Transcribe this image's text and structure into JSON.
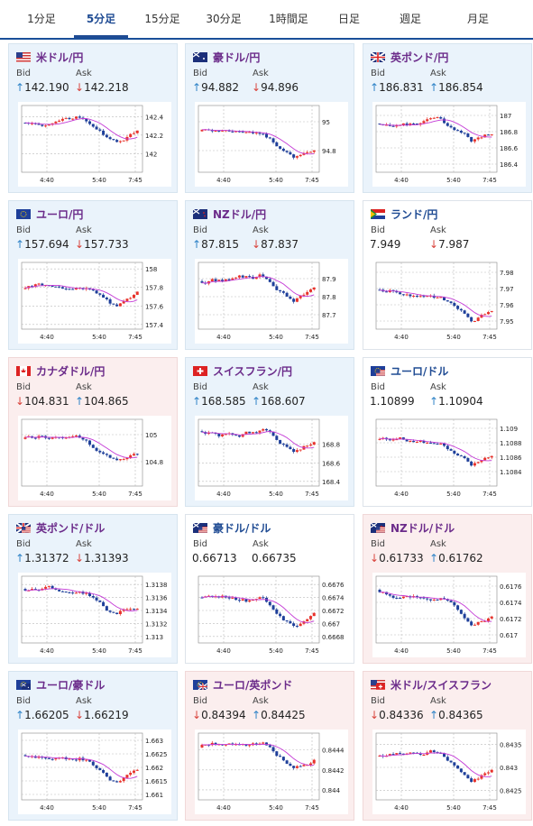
{
  "tabs": [
    "1分足",
    "5分足",
    "15分足",
    "30分足",
    "1時間足",
    "日足",
    "週足",
    "月足"
  ],
  "active_tab": 1,
  "labels": {
    "bid": "Bid",
    "ask": "Ask"
  },
  "cards": [
    {
      "pair": "米ドル/円",
      "flag": "us",
      "bid": "142.190",
      "bid_dir": "up",
      "ask": "142.218",
      "ask_dir": "down",
      "style": "blue",
      "chart_data": {
        "type": "candlestick",
        "x_ticks": [
          "4:40",
          "5:40",
          "7:45"
        ],
        "y_ticks": [
          "142.4",
          "142.2",
          "142"
        ],
        "ylim": [
          141.8,
          142.5
        ]
      }
    },
    {
      "pair": "豪ドル/円",
      "flag": "au",
      "bid": "94.882",
      "bid_dir": "up",
      "ask": "94.896",
      "ask_dir": "down",
      "style": "blue",
      "chart_data": {
        "type": "candlestick",
        "x_ticks": [
          "4:40",
          "5:40",
          "7:45"
        ],
        "y_ticks": [
          "95",
          "94.8"
        ],
        "ylim": [
          94.65,
          95.1
        ]
      }
    },
    {
      "pair": "英ポンド/円",
      "flag": "gb",
      "bid": "186.831",
      "bid_dir": "up",
      "ask": "186.854",
      "ask_dir": "up",
      "style": "blue",
      "chart_data": {
        "type": "candlestick",
        "x_ticks": [
          "4:40",
          "5:40",
          "7:45"
        ],
        "y_ticks": [
          "187",
          "186.8",
          "186.6",
          "186.4"
        ],
        "ylim": [
          186.3,
          187.1
        ]
      }
    },
    {
      "pair": "ユーロ/円",
      "flag": "eu",
      "bid": "157.694",
      "bid_dir": "up",
      "ask": "157.733",
      "ask_dir": "down",
      "style": "blue",
      "chart_data": {
        "type": "candlestick",
        "x_ticks": [
          "4:40",
          "5:40",
          "7:45"
        ],
        "y_ticks": [
          "158",
          "157.8",
          "157.6",
          "157.4"
        ],
        "ylim": [
          157.35,
          158.05
        ]
      }
    },
    {
      "pair": "NZドル/円",
      "flag": "nz",
      "bid": "87.815",
      "bid_dir": "up",
      "ask": "87.837",
      "ask_dir": "down",
      "style": "blue",
      "chart_data": {
        "type": "candlestick",
        "x_ticks": [
          "4:40",
          "5:40",
          "7:45"
        ],
        "y_ticks": [
          "87.9",
          "87.8",
          "87.7"
        ],
        "ylim": [
          87.62,
          87.98
        ]
      }
    },
    {
      "pair": "ランド/円",
      "flag": "za",
      "bid": "7.949",
      "bid_dir": "none",
      "ask": "7.987",
      "ask_dir": "down",
      "style": "white",
      "chart_data": {
        "type": "candlestick",
        "x_ticks": [
          "4:40",
          "5:40",
          "7:45"
        ],
        "y_ticks": [
          "7.98",
          "7.97",
          "7.96",
          "7.95"
        ],
        "ylim": [
          7.945,
          7.985
        ]
      }
    },
    {
      "pair": "カナダドル/円",
      "flag": "ca",
      "bid": "104.831",
      "bid_dir": "down",
      "ask": "104.865",
      "ask_dir": "up",
      "style": "pink",
      "chart_data": {
        "type": "candlestick",
        "x_ticks": [
          "4:40",
          "5:40",
          "7:45"
        ],
        "y_ticks": [
          "105",
          "104.8"
        ],
        "ylim": [
          104.62,
          105.1
        ]
      }
    },
    {
      "pair": "スイスフラン/円",
      "flag": "ch",
      "bid": "168.585",
      "bid_dir": "up",
      "ask": "168.607",
      "ask_dir": "up",
      "style": "blue",
      "chart_data": {
        "type": "candlestick",
        "x_ticks": [
          "4:40",
          "5:40",
          "7:45"
        ],
        "y_ticks": [
          "168.8",
          "168.6",
          "168.4"
        ],
        "ylim": [
          168.35,
          169.05
        ]
      }
    },
    {
      "pair": "ユーロ/ドル",
      "flag": "eu-us",
      "bid": "1.10899",
      "bid_dir": "none",
      "ask": "1.10904",
      "ask_dir": "up",
      "style": "white",
      "chart_data": {
        "type": "candlestick",
        "x_ticks": [
          "4:40",
          "5:40",
          "7:45"
        ],
        "y_ticks": [
          "1.109",
          "1.1088",
          "1.1086",
          "1.1084"
        ],
        "ylim": [
          1.1082,
          1.1091
        ]
      }
    },
    {
      "pair": "英ポンド/ドル",
      "flag": "gb-us",
      "bid": "1.31372",
      "bid_dir": "up",
      "ask": "1.31393",
      "ask_dir": "down",
      "style": "blue",
      "chart_data": {
        "type": "candlestick",
        "x_ticks": [
          "4:40",
          "5:40",
          "7:45"
        ],
        "y_ticks": [
          "1.3138",
          "1.3136",
          "1.3134",
          "1.3132",
          "1.313"
        ],
        "ylim": [
          1.3129,
          1.3139
        ]
      }
    },
    {
      "pair": "豪ドル/ドル",
      "flag": "au-us",
      "bid": "0.66713",
      "bid_dir": "none",
      "ask": "0.66735",
      "ask_dir": "none",
      "style": "white",
      "chart_data": {
        "type": "candlestick",
        "x_ticks": [
          "4:40",
          "5:40",
          "7:45"
        ],
        "y_ticks": [
          "0.6676",
          "0.6674",
          "0.6672",
          "0.667",
          "0.6668"
        ],
        "ylim": [
          0.6667,
          0.6677
        ]
      }
    },
    {
      "pair": "NZドル/ドル",
      "flag": "nz-us",
      "bid": "0.61733",
      "bid_dir": "down",
      "ask": "0.61762",
      "ask_dir": "up",
      "style": "pink",
      "chart_data": {
        "type": "candlestick",
        "x_ticks": [
          "4:40",
          "5:40",
          "7:45"
        ],
        "y_ticks": [
          "0.6176",
          "0.6174",
          "0.6172",
          "0.617"
        ],
        "ylim": [
          0.6169,
          0.6177
        ]
      }
    },
    {
      "pair": "ユーロ/豪ドル",
      "flag": "eu-au",
      "bid": "1.66205",
      "bid_dir": "up",
      "ask": "1.66219",
      "ask_dir": "down",
      "style": "blue",
      "chart_data": {
        "type": "candlestick",
        "x_ticks": [
          "4:40",
          "5:40",
          "7:45"
        ],
        "y_ticks": [
          "1.663",
          "1.6625",
          "1.662",
          "1.6615",
          "1.661"
        ],
        "ylim": [
          1.6608,
          1.6632
        ]
      }
    },
    {
      "pair": "ユーロ/英ポンド",
      "flag": "eu-gb",
      "bid": "0.84394",
      "bid_dir": "down",
      "ask": "0.84425",
      "ask_dir": "up",
      "style": "pink",
      "chart_data": {
        "type": "candlestick",
        "x_ticks": [
          "4:40",
          "5:40",
          "7:45"
        ],
        "y_ticks": [
          "0.8444",
          "0.8442",
          "0.844"
        ],
        "ylim": [
          0.8439,
          0.84455
        ]
      }
    },
    {
      "pair": "米ドル/スイスフラン",
      "flag": "us-ch",
      "bid": "0.84336",
      "bid_dir": "down",
      "ask": "0.84365",
      "ask_dir": "up",
      "style": "pink",
      "chart_data": {
        "type": "candlestick",
        "x_ticks": [
          "4:40",
          "5:40",
          "7:45"
        ],
        "y_ticks": [
          "0.8435",
          "0.843",
          "0.8425"
        ],
        "ylim": [
          0.8423,
          0.8437
        ]
      }
    }
  ],
  "colors": {
    "up_arrow": "#2f83c7",
    "down_arrow": "#d9443d",
    "candle_up": "#e8322b",
    "candle_down": "#1e3f9a",
    "ma_line": "#c43bd6"
  }
}
